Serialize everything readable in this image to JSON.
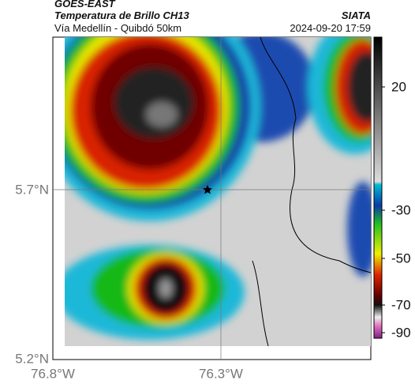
{
  "header": {
    "title": "GOES-EAST",
    "subtitle": "Temperatura de Brillo CH13",
    "route": "Vía Medellín - Quibdó 50km",
    "source": "SIATA",
    "timestamp": "2024-09-20 17:59"
  },
  "map": {
    "lat_labels": [
      "5.7°N",
      "5.2°N"
    ],
    "lon_labels": [
      "76.8°W",
      "76.3°W"
    ]
  },
  "colorbar": {
    "tick_labels": [
      "20",
      "-30",
      "-50",
      "-70",
      "-90"
    ]
  }
}
